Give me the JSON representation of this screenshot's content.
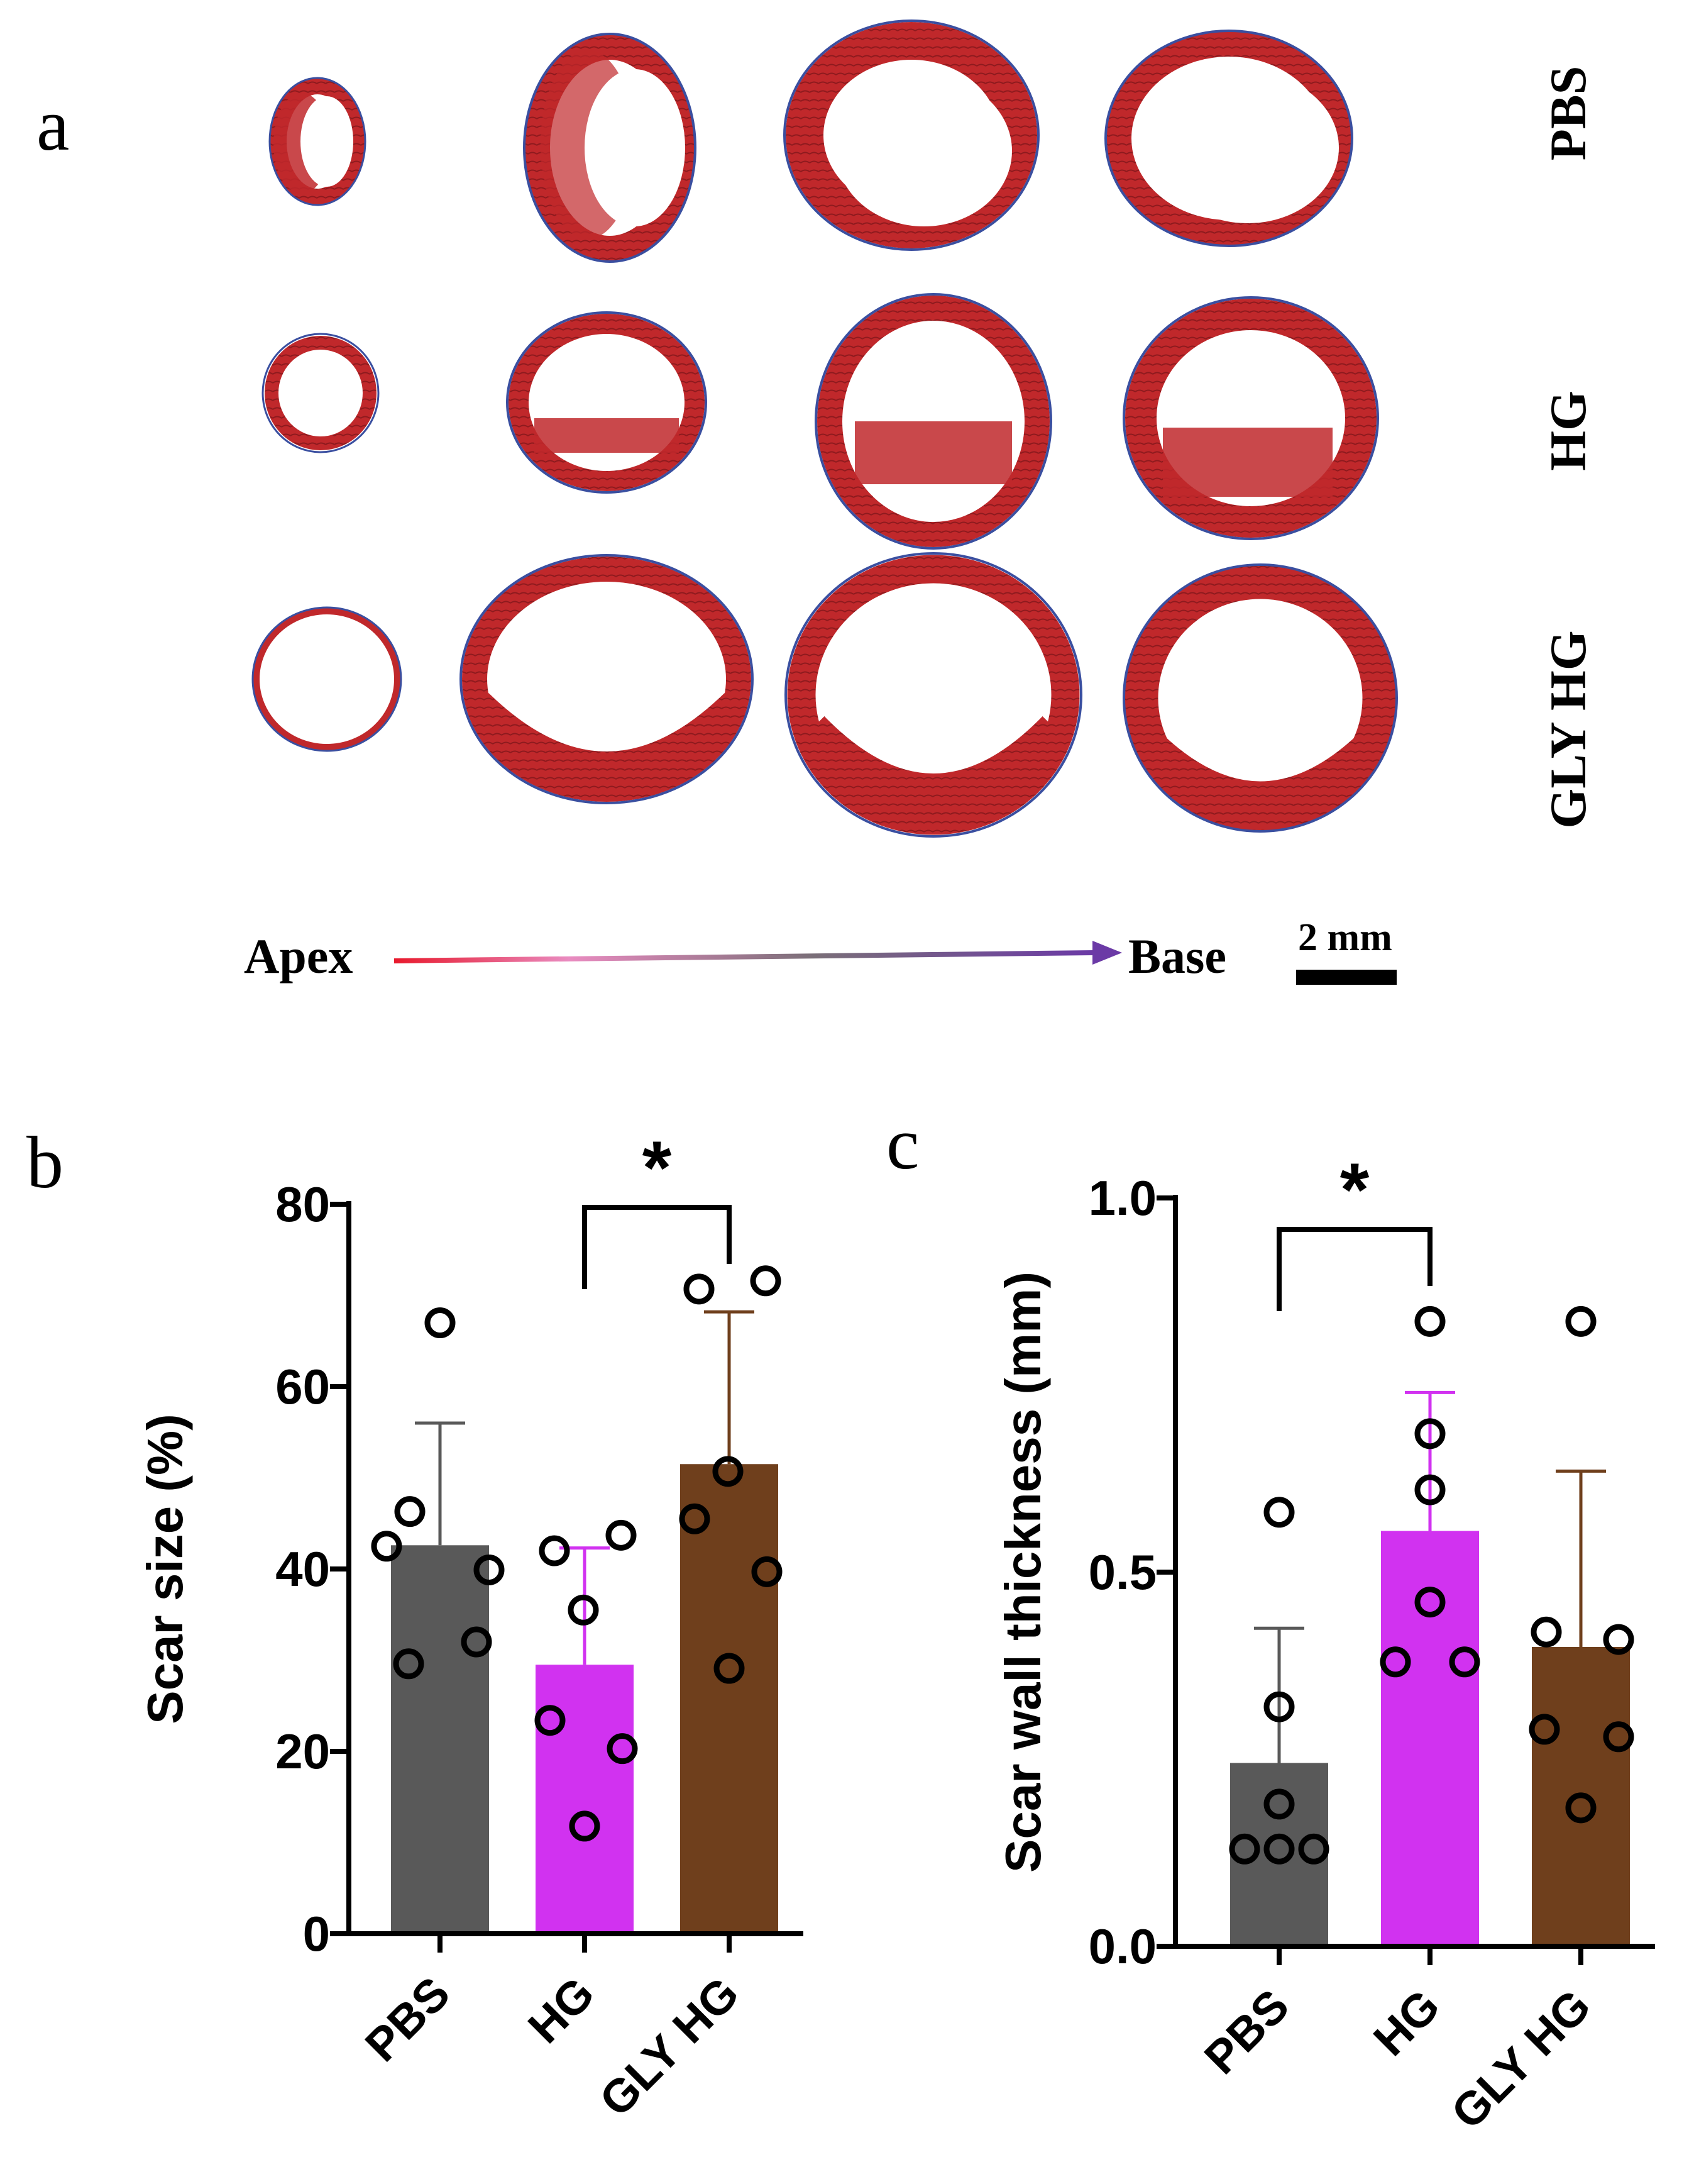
{
  "figure": {
    "panel_a": {
      "letter": "a",
      "rows": [
        "PBS",
        "HG",
        "GLY HG"
      ],
      "apex_label": "Apex",
      "base_label": "Base",
      "scale_bar_label": "2 mm",
      "tissue_color": "#c0282b",
      "collagen_color": "#3a4fa0"
    },
    "panel_b": {
      "letter": "b"
    },
    "panel_c": {
      "letter": "c"
    }
  },
  "chart_data": [
    {
      "type": "bar",
      "panel": "b",
      "ylabel": "Scar size (%)",
      "ylim": [
        0,
        80
      ],
      "yticks": [
        0,
        20,
        40,
        60,
        80
      ],
      "categories": [
        "PBS",
        "HG",
        "GLY HG"
      ],
      "values": [
        42.6,
        29.5,
        51.5
      ],
      "error_upper": [
        56,
        42.3,
        68.2
      ],
      "colors": [
        "#595959",
        "#d132f0",
        "#6f3f1c"
      ],
      "points": [
        [
          67,
          46.3,
          42.5,
          39.9,
          32,
          29.6
        ],
        [
          42,
          43.7,
          35.5,
          23.4,
          20.3,
          11.8
        ],
        [
          70.7,
          71.6,
          50.7,
          45.5,
          39.7,
          29.1
        ]
      ],
      "significance": {
        "from": "HG",
        "to": "GLY HG",
        "label": "*"
      }
    },
    {
      "type": "bar",
      "panel": "c",
      "ylabel": "Scar wall thickness (mm)",
      "ylim": [
        0,
        1.0
      ],
      "yticks": [
        0.0,
        0.5,
        1.0
      ],
      "ytick_labels": [
        "0.0",
        "0.5",
        "1.0"
      ],
      "categories": [
        "PBS",
        "HG",
        "GLY HG"
      ],
      "values": [
        0.245,
        0.555,
        0.4
      ],
      "error_upper": [
        0.425,
        0.74,
        0.635
      ],
      "colors": [
        "#595959",
        "#d132f0",
        "#6f3f1c"
      ],
      "points": [
        [
          0.58,
          0.32,
          0.19,
          0.13,
          0.13,
          0.13
        ],
        [
          0.835,
          0.685,
          0.61,
          0.46,
          0.38,
          0.38
        ],
        [
          0.835,
          0.42,
          0.41,
          0.29,
          0.28,
          0.185
        ]
      ],
      "significance": {
        "from": "PBS",
        "to": "HG",
        "label": "*"
      }
    }
  ]
}
